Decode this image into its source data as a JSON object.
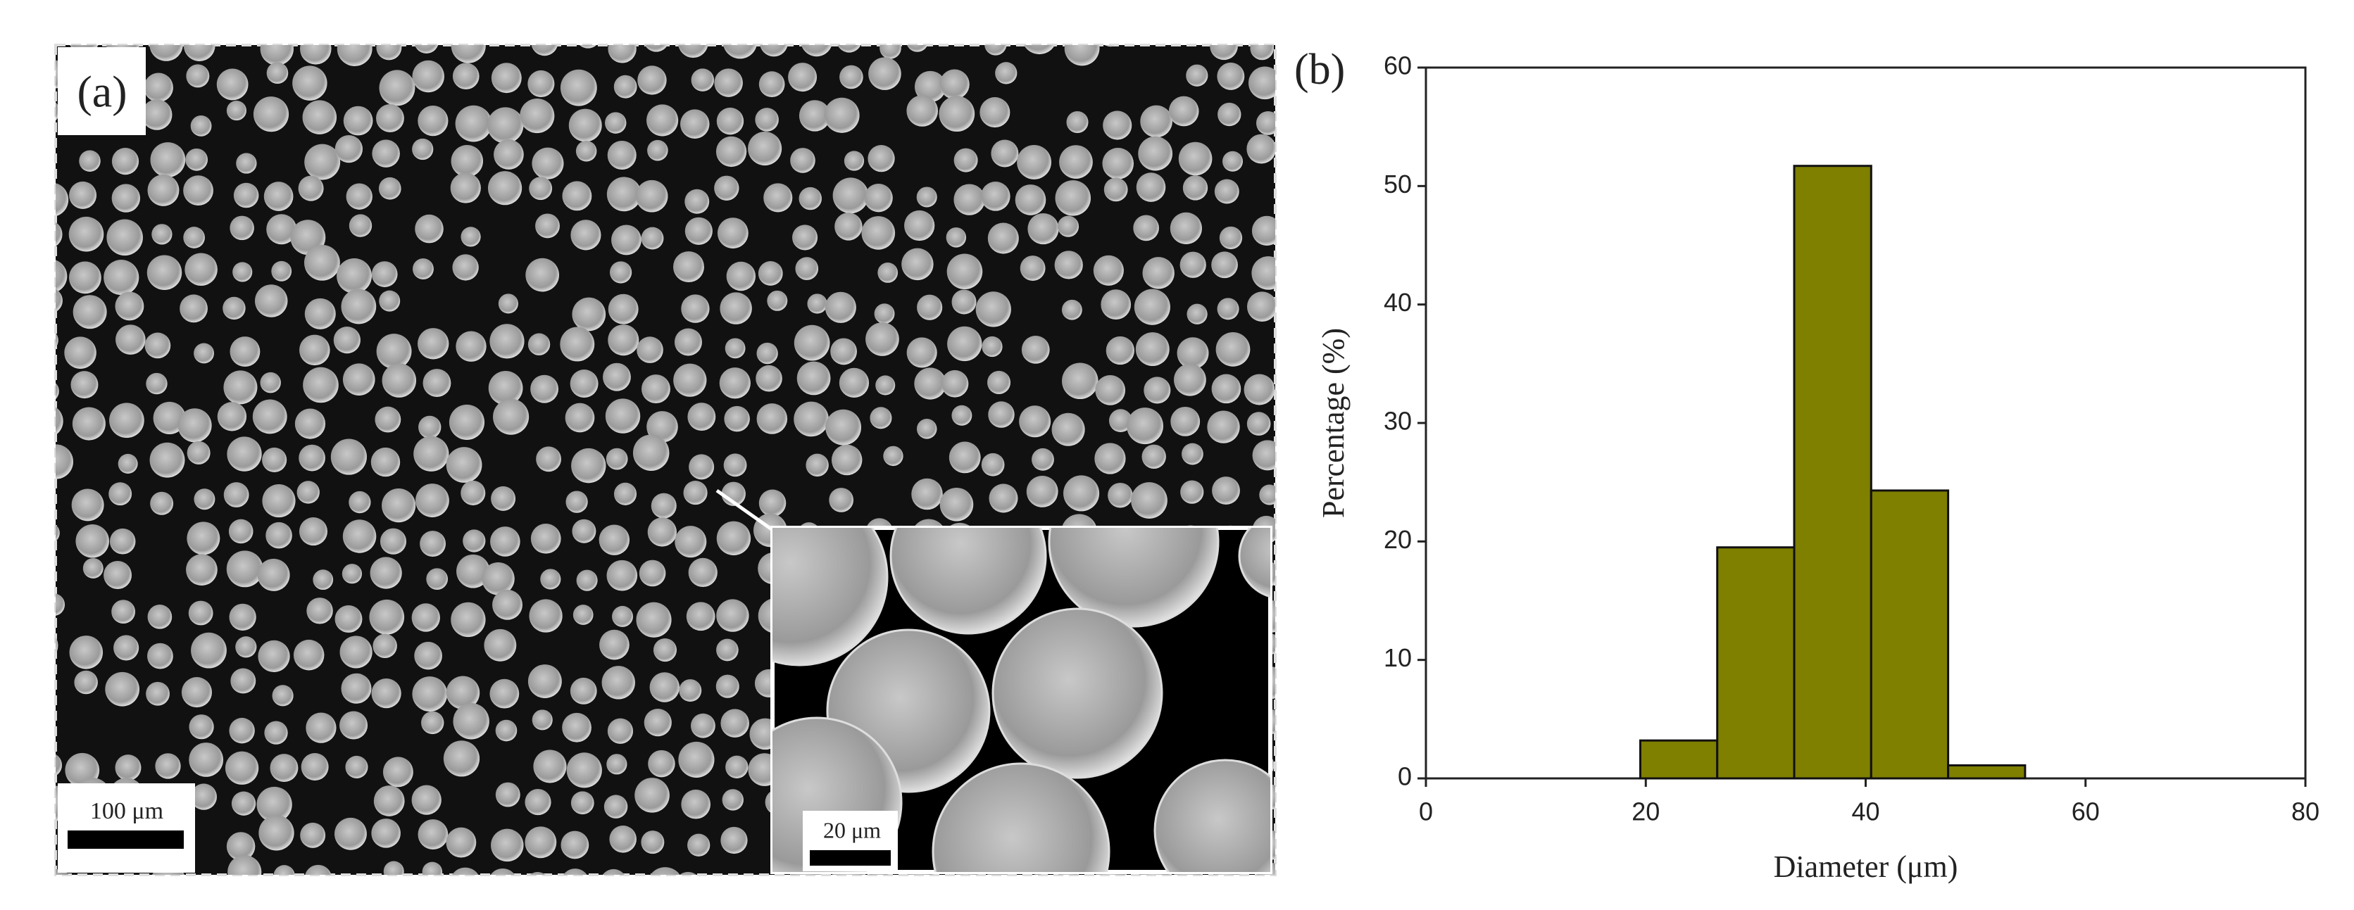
{
  "panel_a": {
    "label": "(a)",
    "scale_bar": "100 μm",
    "inset_scale_bar": "20 μm"
  },
  "chart_data": {
    "type": "histogram",
    "panel_label": "(b)",
    "x_label": "Diameter (μm)",
    "y_label": "Percentage (%)",
    "bins": [
      19.5,
      26.5,
      33.5,
      40.5,
      47.5,
      54.5
    ],
    "values": [
      3.2,
      19.5,
      51.7,
      24.3,
      1.1
    ],
    "color": "#7f7f00",
    "xlim": [
      0,
      80
    ],
    "xticks": [
      0,
      20,
      40,
      60,
      80
    ],
    "ylim": [
      0,
      60
    ],
    "yticks": [
      0,
      10,
      20,
      30,
      40,
      50,
      60
    ]
  }
}
